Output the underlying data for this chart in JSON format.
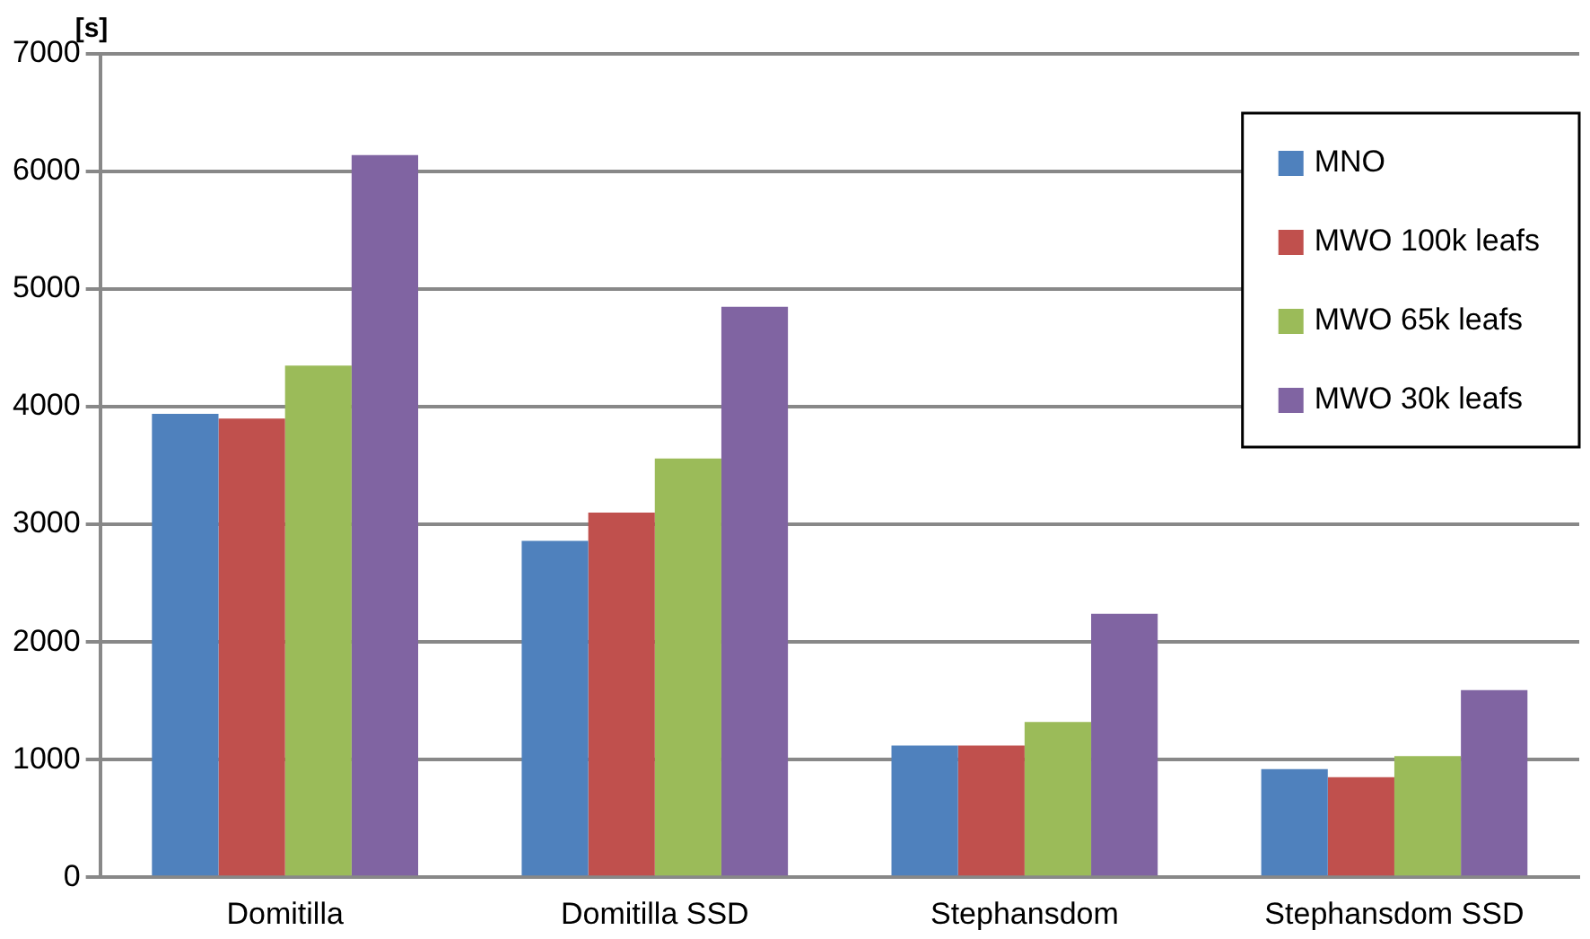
{
  "chart_data": {
    "type": "bar",
    "ylabel": "[s]",
    "categories": [
      "Domitilla",
      "Domitilla SSD",
      "Stephansdom",
      "Stephansdom SSD"
    ],
    "series": [
      {
        "name": "MNO",
        "color": "#4f81bd",
        "values": [
          3940,
          2860,
          1120,
          920
        ]
      },
      {
        "name": "MWO 100k leafs",
        "color": "#c0504d",
        "values": [
          3900,
          3100,
          1120,
          850
        ]
      },
      {
        "name": "MWO 65k leafs",
        "color": "#9bbb59",
        "values": [
          4350,
          3560,
          1320,
          1030
        ]
      },
      {
        "name": "MWO 30k leafs",
        "color": "#8064a2",
        "values": [
          6140,
          4850,
          2240,
          1590
        ]
      }
    ],
    "ylim": [
      0,
      7000
    ],
    "yticks": [
      0,
      1000,
      2000,
      3000,
      4000,
      5000,
      6000,
      7000
    ],
    "grid": "y",
    "legend": "top right"
  }
}
